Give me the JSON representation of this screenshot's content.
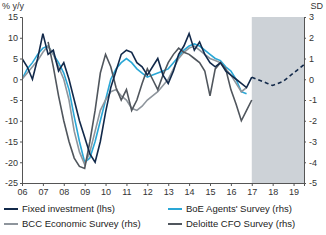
{
  "chart_data": {
    "type": "line",
    "y_label": "% y/y",
    "y2_label": "SD",
    "x": [
      2006.0,
      2006.25,
      2006.5,
      2006.75,
      2007.0,
      2007.25,
      2007.5,
      2007.75,
      2008.0,
      2008.25,
      2008.5,
      2008.75,
      2009.0,
      2009.25,
      2009.5,
      2009.75,
      2010.0,
      2010.25,
      2010.5,
      2010.75,
      2011.0,
      2011.25,
      2011.5,
      2011.75,
      2012.0,
      2012.25,
      2012.5,
      2012.75,
      2013.0,
      2013.25,
      2013.5,
      2013.75,
      2014.0,
      2014.25,
      2014.5,
      2014.75,
      2015.0,
      2015.25,
      2015.5,
      2015.75,
      2016.0,
      2016.25,
      2016.5,
      2016.75,
      2017.0,
      2017.25,
      2017.5,
      2017.75,
      2018.0,
      2018.25,
      2018.5,
      2018.75,
      2019.0,
      2019.25,
      2019.5
    ],
    "xlim": [
      2006,
      2019.5
    ],
    "xticks": [
      {
        "value": 2006,
        "label": "06"
      },
      {
        "value": 2007,
        "label": "07"
      },
      {
        "value": 2008,
        "label": "08"
      },
      {
        "value": 2009,
        "label": "09"
      },
      {
        "value": 2010,
        "label": "10"
      },
      {
        "value": 2011,
        "label": "11"
      },
      {
        "value": 2012,
        "label": "12"
      },
      {
        "value": 2013,
        "label": "13"
      },
      {
        "value": 2014,
        "label": "14"
      },
      {
        "value": 2015,
        "label": "15"
      },
      {
        "value": 2016,
        "label": "16"
      },
      {
        "value": 2017,
        "label": "17"
      },
      {
        "value": 2018,
        "label": "18"
      },
      {
        "value": 2019,
        "label": "19"
      }
    ],
    "ylim": [
      -25,
      15
    ],
    "yticks": [
      -25,
      -20,
      -15,
      -10,
      -5,
      0,
      5,
      10,
      15
    ],
    "y2lim": [
      -5,
      3
    ],
    "y2ticks": [
      -5,
      -4,
      -3,
      -2,
      -1,
      0,
      1,
      2,
      3
    ],
    "grid": false,
    "shaded_region": [
      2017,
      2019.5
    ],
    "series": [
      {
        "name": "Fixed investment (lhs)",
        "color": "#12294a",
        "line_style": "solid",
        "values": [
          5,
          3,
          0,
          5,
          11,
          6,
          7,
          2,
          4,
          0,
          -5,
          -10,
          -14,
          -18,
          -20,
          -15,
          -8,
          -2,
          2,
          6,
          7,
          6.5,
          4,
          3,
          1,
          3,
          5,
          1,
          -1,
          2,
          6,
          8,
          11,
          7,
          9,
          6,
          4,
          3,
          4,
          2,
          1,
          0,
          -1,
          -2,
          0.5,
          null,
          null,
          null,
          null,
          null,
          null,
          null,
          null,
          null,
          null
        ]
      },
      {
        "name": "BoE Agents' Survey (rhs)",
        "color": "#2aa7d6",
        "axis": "y2",
        "line_style": "solid",
        "values": [
          0,
          0.5,
          0.8,
          1.2,
          1.5,
          1.6,
          1.2,
          0.8,
          0.3,
          -0.5,
          -1.8,
          -3,
          -4,
          -3.8,
          -3,
          -2,
          -1,
          0,
          0.5,
          0.8,
          1,
          0.8,
          0.5,
          0.3,
          0.1,
          0.2,
          0.3,
          0.4,
          0.5,
          0.8,
          1.1,
          1.4,
          1.6,
          1.7,
          1.6,
          1.4,
          1.2,
          1.0,
          0.9,
          0.6,
          0.4,
          0,
          -0.6,
          -0.7,
          null,
          null,
          null,
          null,
          null,
          null,
          null,
          null,
          null,
          null,
          null
        ]
      },
      {
        "name": "BCC Economic Survey (rhs)",
        "color": "#8e959c",
        "axis": "y2",
        "line_style": "solid",
        "values": [
          0,
          0.3,
          0.6,
          0.9,
          1.3,
          1.6,
          1.2,
          0.6,
          0,
          -1,
          -2.5,
          -3.5,
          -4.1,
          -3.5,
          -2.5,
          -1.5,
          -1,
          -0.6,
          -0.5,
          -0.8,
          -1,
          -1.4,
          -1.5,
          -1.3,
          -1,
          -0.8,
          -0.6,
          -0.3,
          0,
          0.5,
          1,
          1.3,
          1.5,
          1.6,
          1.4,
          1.2,
          1,
          0.9,
          0.8,
          0.5,
          0.2,
          -0.2,
          -0.6,
          -0.4,
          null,
          null,
          null,
          null,
          null,
          null,
          null,
          null,
          null,
          null,
          null
        ]
      },
      {
        "name": "Deloitte CFO Survey (rhs)",
        "color": "#50565d",
        "axis": "y2",
        "line_style": "solid",
        "values": [
          null,
          null,
          null,
          null,
          null,
          1.8,
          0.6,
          -0.8,
          -2,
          -3,
          -3.8,
          -4.2,
          -4.3,
          -3,
          -1.5,
          0.3,
          1.2,
          0.6,
          -0.4,
          -1,
          -0.5,
          -1.5,
          -1,
          -0.2,
          0.5,
          0,
          -0.5,
          0.2,
          0.8,
          1.2,
          1.5,
          1.3,
          1.2,
          1.0,
          0.8,
          0.4,
          -0.8,
          0.5,
          0.8,
          0.5,
          -0.5,
          -1.2,
          -2,
          -1.5,
          -1,
          null,
          null,
          null,
          null,
          null,
          null,
          null,
          null,
          null,
          null
        ]
      },
      {
        "color": "#12294a",
        "line_style": "dashed",
        "values": [
          null,
          null,
          null,
          null,
          null,
          null,
          null,
          null,
          null,
          null,
          null,
          null,
          null,
          null,
          null,
          null,
          null,
          null,
          null,
          null,
          null,
          null,
          null,
          null,
          null,
          null,
          null,
          null,
          null,
          null,
          null,
          null,
          null,
          null,
          null,
          null,
          null,
          null,
          null,
          null,
          null,
          null,
          null,
          null,
          0.5,
          0,
          -0.5,
          -1,
          -1.5,
          -1,
          -0.5,
          0.5,
          1.5,
          2.5,
          3.5
        ]
      }
    ]
  }
}
